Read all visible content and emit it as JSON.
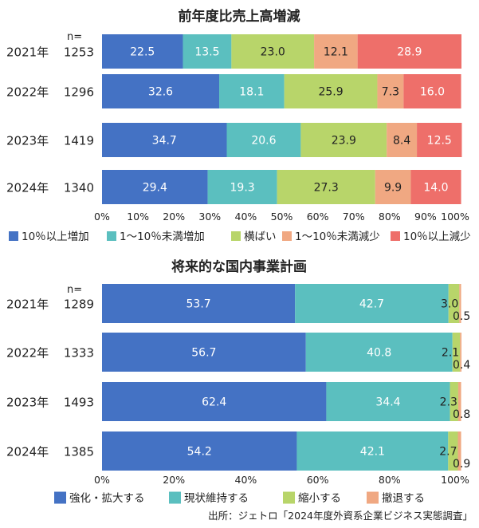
{
  "source": "出所：ジェトロ「2024年度外資系企業ビジネス実態調査」",
  "chart_data": [
    {
      "type": "bar",
      "orientation": "horizontal",
      "stacked": true,
      "title": "前年度比売上高増減",
      "n_header": "n=",
      "categories": [
        "2021年",
        "2022年",
        "2023年",
        "2024年"
      ],
      "n_values": [
        "1253",
        "1296",
        "1419",
        "1340"
      ],
      "xlim": [
        0,
        100
      ],
      "x_ticks": [
        "0%",
        "10%",
        "20%",
        "30%",
        "40%",
        "50%",
        "60%",
        "70%",
        "80%",
        "90%",
        "100%"
      ],
      "legend_position": "bottom",
      "series": [
        {
          "name": "10％以上増加",
          "color": "#4472C4",
          "values": [
            22.5,
            32.6,
            34.7,
            29.4
          ]
        },
        {
          "name": "1〜10％未満増加",
          "color": "#5BBFBF",
          "values": [
            13.5,
            18.1,
            20.6,
            19.3
          ]
        },
        {
          "name": "横ばい",
          "color": "#B8D56A",
          "values": [
            23.0,
            25.9,
            23.9,
            27.3
          ]
        },
        {
          "name": "1〜10％未満減少",
          "color": "#F0A882",
          "values": [
            12.1,
            7.3,
            8.4,
            9.9
          ]
        },
        {
          "name": "10％以上減少",
          "color": "#EE6F6A",
          "values": [
            28.9,
            16.0,
            12.5,
            14.0
          ]
        }
      ]
    },
    {
      "type": "bar",
      "orientation": "horizontal",
      "stacked": true,
      "title": "将来的な国内事業計画",
      "n_header": "n=",
      "categories": [
        "2021年",
        "2022年",
        "2023年",
        "2024年"
      ],
      "n_values": [
        "1289",
        "1333",
        "1493",
        "1385"
      ],
      "xlim": [
        0,
        100
      ],
      "x_ticks": [
        "0%",
        "20%",
        "40%",
        "60%",
        "80%",
        "100%"
      ],
      "legend_position": "bottom",
      "series": [
        {
          "name": "強化・拡大する",
          "color": "#4472C4",
          "values": [
            53.7,
            56.7,
            62.4,
            54.2
          ]
        },
        {
          "name": "現状維持する",
          "color": "#5BBFBF",
          "values": [
            42.7,
            40.8,
            34.4,
            42.1
          ]
        },
        {
          "name": "縮小する",
          "color": "#B8D56A",
          "values": [
            3.0,
            2.1,
            2.3,
            2.7
          ]
        },
        {
          "name": "撤退する",
          "color": "#F0A882",
          "values": [
            0.5,
            0.4,
            0.8,
            0.9
          ]
        }
      ]
    }
  ]
}
